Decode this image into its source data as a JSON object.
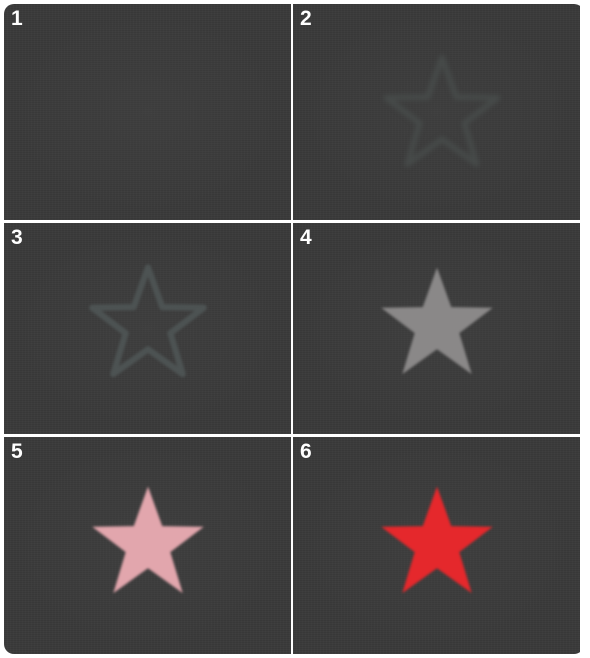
{
  "panels": [
    {
      "number": "1",
      "star": "none"
    },
    {
      "number": "2",
      "star": "outline-faint",
      "color": "#4a4f4e"
    },
    {
      "number": "3",
      "star": "outline",
      "color": "#4d5353"
    },
    {
      "number": "4",
      "star": "filled",
      "color": "#8a8888"
    },
    {
      "number": "5",
      "star": "filled",
      "color": "#e2a6ad"
    },
    {
      "number": "6",
      "star": "filled",
      "color": "#e5282c"
    }
  ]
}
